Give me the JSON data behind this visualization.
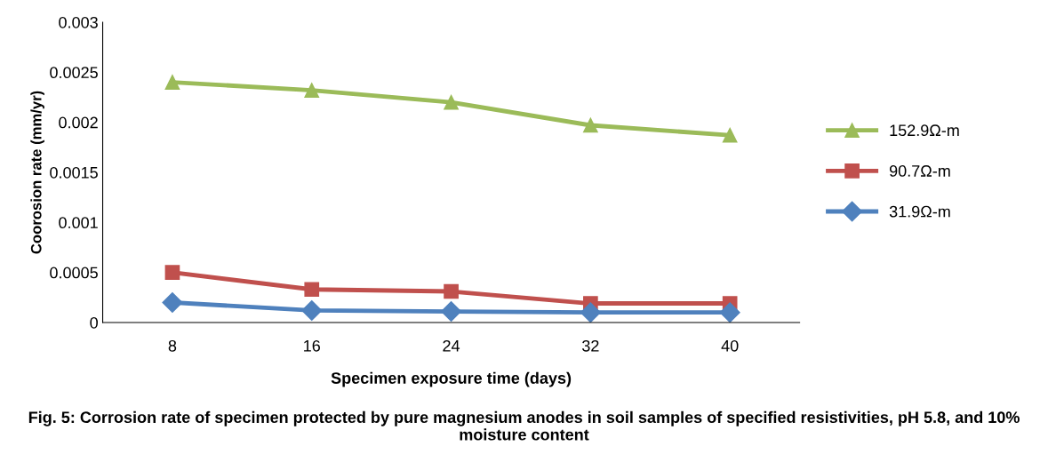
{
  "chart_data": {
    "type": "line",
    "xlabel": "Specimen exposure time (days)",
    "ylabel": "Coorosion rate (mm/yr)",
    "categories": [
      "8",
      "16",
      "24",
      "32",
      "40"
    ],
    "series": [
      {
        "name": "152.9Ω-m",
        "color": "#9bbb59",
        "marker": "triangle",
        "values": [
          0.0024,
          0.00232,
          0.0022,
          0.00197,
          0.00187
        ]
      },
      {
        "name": "90.7Ω-m",
        "color": "#c0504d",
        "marker": "square",
        "values": [
          0.0005,
          0.00033,
          0.00031,
          0.00019,
          0.00019
        ]
      },
      {
        "name": "31.9Ω-m",
        "color": "#4f81bd",
        "marker": "diamond",
        "values": [
          0.0002,
          0.00012,
          0.00011,
          0.0001,
          0.0001
        ]
      }
    ],
    "ylim": [
      0,
      0.003
    ],
    "yticks": [
      0,
      0.0005,
      0.001,
      0.0015,
      0.002,
      0.0025,
      0.003
    ],
    "legend": "right",
    "grid": false,
    "line_style": "solid",
    "annotations": [
      "Fig. 5: Corrosion rate of specimen protected by pure magnesium anodes in soil samples of specified resistivities, pH 5.8, and 10% moisture content"
    ]
  }
}
